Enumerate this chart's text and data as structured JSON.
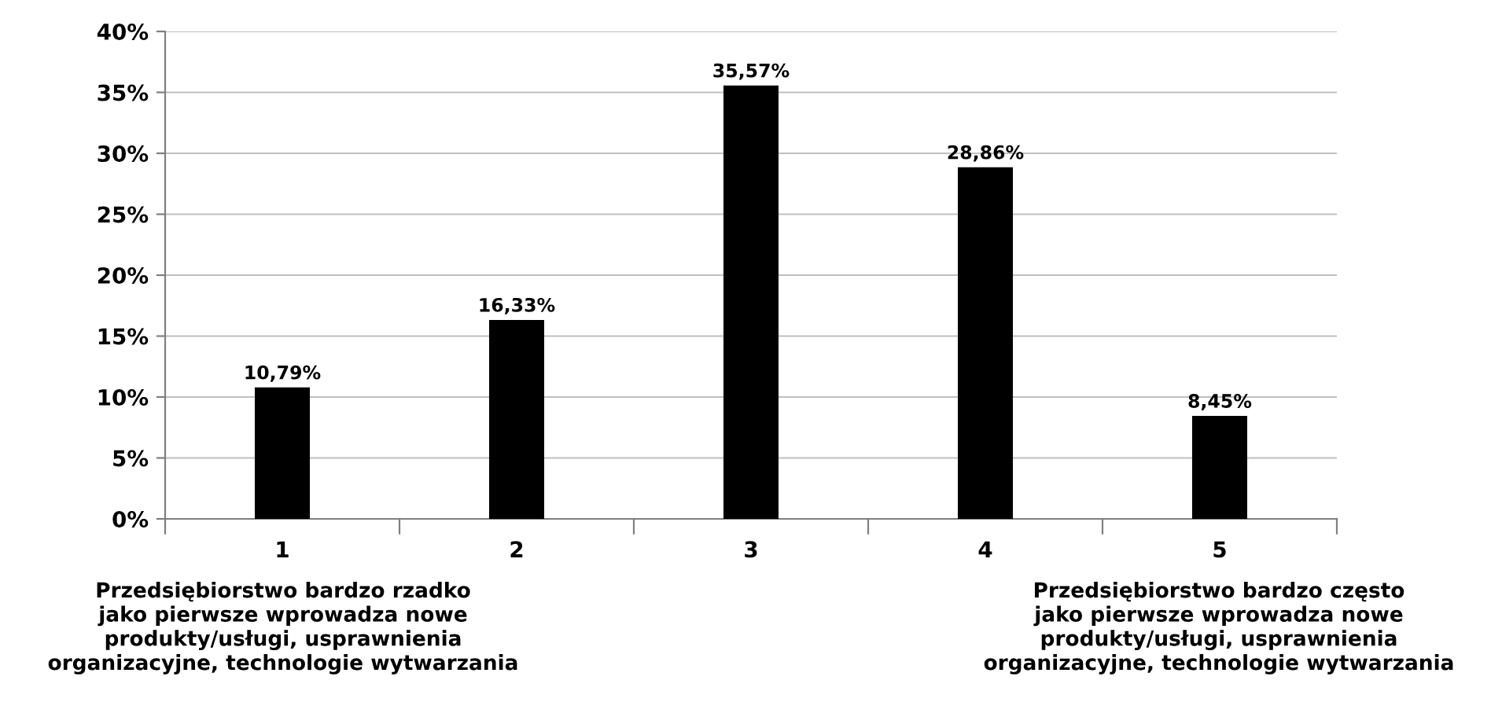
{
  "chart_data": {
    "type": "bar",
    "categories": [
      "1",
      "2",
      "3",
      "4",
      "5"
    ],
    "values": [
      10.79,
      16.33,
      35.57,
      28.86,
      8.45
    ],
    "color": "#000000",
    "value_labels": [
      "10,79%",
      "16,33%",
      "35,57%",
      "28,86%",
      "8,45%"
    ],
    "ylim": [
      0,
      40
    ],
    "yticks": [
      {
        "value": 0,
        "label": "0%"
      },
      {
        "value": 5,
        "label": "5%"
      },
      {
        "value": 10,
        "label": "10%"
      },
      {
        "value": 15,
        "label": "15%"
      },
      {
        "value": 20,
        "label": "20%"
      },
      {
        "value": 25,
        "label": "25%"
      },
      {
        "value": 30,
        "label": "30%"
      },
      {
        "value": 35,
        "label": "35%"
      },
      {
        "value": 40,
        "label": "40%"
      }
    ],
    "grid": "y",
    "legend": false,
    "annotations": [
      "Przedsiębiorstwo bardzo rzadko\njako pierwsze wprowadza nowe\nprodukty/usługi, usprawnienia\norganizacyjne, technologie wytwarzania",
      "Przedsiębiorstwo bardzo często\njako pierwsze wprowadza nowe\nprodukty/usługi, usprawnienia\norganizacyjne, technologie wytwarzania"
    ]
  }
}
